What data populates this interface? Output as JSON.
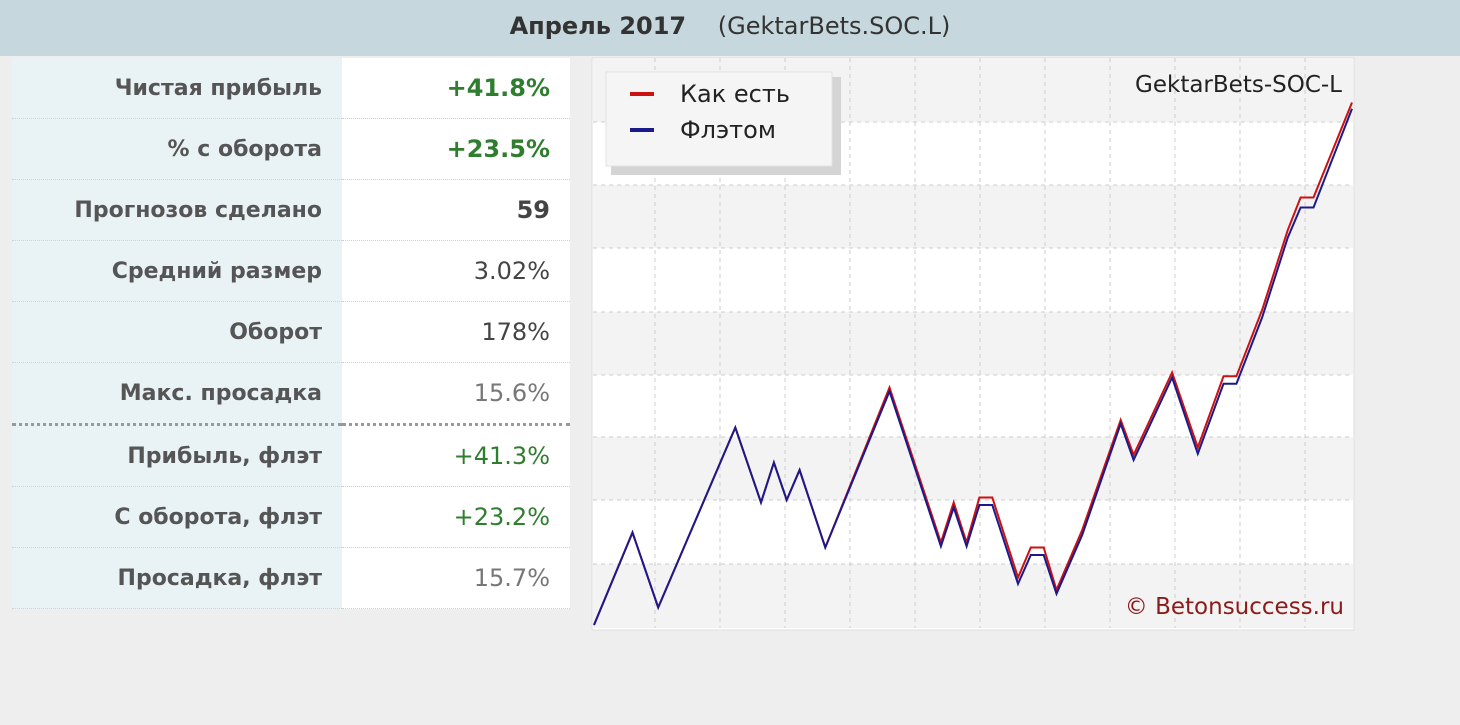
{
  "header": {
    "title": "Апрель 2017",
    "subtitle": "(GektarBets.SOC.L)"
  },
  "stats": {
    "rows": [
      [
        "Чистая прибыль",
        "+41.8%"
      ],
      [
        "% с оборота",
        "+23.5%"
      ],
      [
        "Прогнозов сделано",
        "59"
      ],
      [
        "Средний размер",
        "3.02%"
      ],
      [
        "Оборот",
        "178%"
      ],
      [
        "Макс. просадка",
        "15.6%"
      ],
      [
        "Прибыль, флэт",
        "+41.3%"
      ],
      [
        "С оборота, флэт",
        "+23.2%"
      ],
      [
        "Просадка, флэт",
        "15.7%"
      ]
    ]
  },
  "chart_data": {
    "type": "line",
    "watermark": "GektarBets-SOC-L",
    "credit": "© Betonsuccess.ru",
    "x": [
      0,
      3,
      5,
      11,
      13,
      14,
      15,
      16,
      18,
      23,
      27,
      28,
      29,
      30,
      31,
      33,
      34,
      35,
      36,
      38,
      41,
      42,
      45,
      47,
      49,
      50,
      52,
      54,
      55,
      56,
      59
    ],
    "xlim": [
      0,
      59
    ],
    "ylim": [
      0,
      45
    ],
    "legend": "upper left",
    "series": [
      {
        "name": "Как есть",
        "color": "#cc1111",
        "values": [
          0,
          7.4,
          1.4,
          15.8,
          9.8,
          13,
          10,
          12.4,
          6.2,
          19,
          6.6,
          9.8,
          6.6,
          10.2,
          10.2,
          3.8,
          6.2,
          6.2,
          2.8,
          7.6,
          16.4,
          13.6,
          20.2,
          14.2,
          19.9,
          19.9,
          25.2,
          31.6,
          34.2,
          34.2,
          41.8
        ]
      },
      {
        "name": "Флэтом",
        "color": "#1a1a8c",
        "values": [
          0,
          7.4,
          1.4,
          15.8,
          9.8,
          13,
          10,
          12.4,
          6.2,
          18.7,
          6.3,
          9.4,
          6.3,
          9.6,
          9.6,
          3.3,
          5.6,
          5.6,
          2.5,
          7.2,
          16.1,
          13.2,
          19.8,
          13.7,
          19.3,
          19.3,
          24.6,
          31,
          33.4,
          33.4,
          41.3
        ]
      }
    ]
  }
}
